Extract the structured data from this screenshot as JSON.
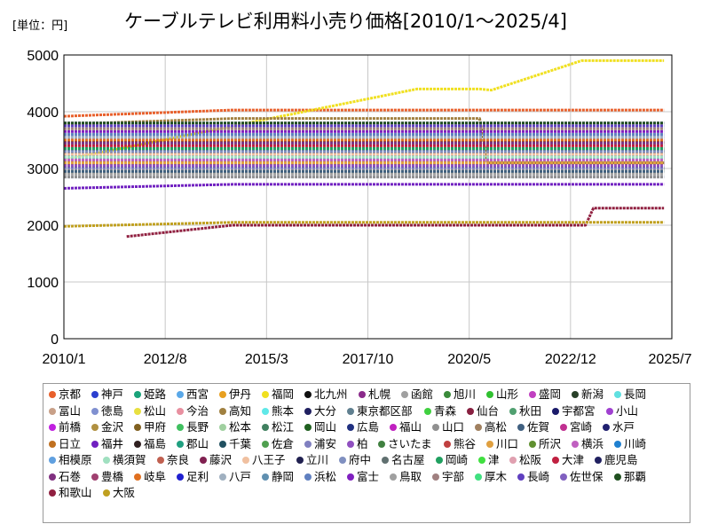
{
  "chart_data": {
    "type": "line",
    "title": "ケーブルテレビ利用料小売り価格[2010/1～2025/4]",
    "unit_label": "[単位：円]",
    "ylim": [
      0,
      5000
    ],
    "yticks": [
      "0",
      "1000",
      "2000",
      "3000",
      "4000",
      "5000"
    ],
    "xlim": [
      "2010/1",
      "2025/7"
    ],
    "xticks": [
      "2010/1",
      "2012/8",
      "2015/3",
      "2017/10",
      "2020/5",
      "2022/12",
      "2025/7"
    ],
    "grid": true,
    "legend_placement": "bottom",
    "series": [
      {
        "name": "京都",
        "color": "#e8602c",
        "values": [
          [
            2010.0,
            3920
          ],
          [
            2014.3,
            4030
          ],
          [
            2025.3,
            4030
          ]
        ]
      },
      {
        "name": "神戸",
        "color": "#2b3fcf",
        "values": [
          [
            2010.0,
            3010
          ],
          [
            2025.3,
            3010
          ]
        ]
      },
      {
        "name": "姫路",
        "color": "#1aa37a",
        "values": [
          [
            2010.0,
            3300
          ],
          [
            2025.3,
            3300
          ]
        ]
      },
      {
        "name": "西宮",
        "color": "#5aa8e8",
        "values": [
          [
            2010.0,
            3010
          ],
          [
            2025.3,
            3010
          ]
        ]
      },
      {
        "name": "伊丹",
        "color": "#e8a020",
        "values": [
          [
            2010.0,
            3080
          ],
          [
            2025.3,
            3080
          ]
        ]
      },
      {
        "name": "福岡",
        "color": "#f0e020",
        "values": [
          [
            2010.0,
            3150
          ],
          [
            2019.0,
            4400
          ],
          [
            2020.6,
            4400
          ],
          [
            2020.9,
            4380
          ],
          [
            2023.2,
            4900
          ],
          [
            2025.3,
            4900
          ]
        ]
      },
      {
        "name": "北九州",
        "color": "#101010",
        "values": [
          [
            2010.0,
            3460
          ],
          [
            2025.3,
            3460
          ]
        ]
      },
      {
        "name": "札幌",
        "color": "#8a2a8a",
        "values": [
          [
            2010.0,
            3080
          ],
          [
            2025.3,
            3080
          ]
        ]
      },
      {
        "name": "函館",
        "color": "#a0a0a0",
        "values": [
          [
            2010.0,
            2900
          ],
          [
            2025.3,
            2900
          ]
        ]
      },
      {
        "name": "旭川",
        "color": "#3a8a3a",
        "values": [
          [
            2010.0,
            3250
          ],
          [
            2025.3,
            3250
          ]
        ]
      },
      {
        "name": "山形",
        "color": "#30c030",
        "values": [
          [
            2010.0,
            3350
          ],
          [
            2025.3,
            3350
          ]
        ]
      },
      {
        "name": "盛岡",
        "color": "#c040c0",
        "values": [
          [
            2010.0,
            3000
          ],
          [
            2025.3,
            3000
          ]
        ]
      },
      {
        "name": "新潟",
        "color": "#284028",
        "values": [
          [
            2010.0,
            2950
          ],
          [
            2025.3,
            2950
          ]
        ]
      },
      {
        "name": "長岡",
        "color": "#60e0e0",
        "values": [
          [
            2010.0,
            3200
          ],
          [
            2025.3,
            3200
          ]
        ]
      },
      {
        "name": "冨山",
        "color": "#c8a088",
        "values": [
          [
            2010.0,
            3100
          ],
          [
            2025.3,
            3100
          ]
        ]
      },
      {
        "name": "徳島",
        "color": "#8090d0",
        "values": [
          [
            2010.0,
            2850
          ],
          [
            2025.3,
            2850
          ]
        ]
      },
      {
        "name": "松山",
        "color": "#e8e040",
        "values": [
          [
            2010.0,
            2980
          ],
          [
            2025.3,
            2980
          ]
        ]
      },
      {
        "name": "今治",
        "color": "#e890a0",
        "values": [
          [
            2010.0,
            3000
          ],
          [
            2025.3,
            3000
          ]
        ]
      },
      {
        "name": "高知",
        "color": "#a08040",
        "values": [
          [
            2010.0,
            3780
          ],
          [
            2014.3,
            3880
          ],
          [
            2020.6,
            3880
          ],
          [
            2020.8,
            3100
          ],
          [
            2025.3,
            3100
          ]
        ]
      },
      {
        "name": "熊本",
        "color": "#60e8e8",
        "values": [
          [
            2010.0,
            3000
          ],
          [
            2025.3,
            3000
          ]
        ]
      },
      {
        "name": "大分",
        "color": "#202060",
        "values": [
          [
            2010.0,
            3030
          ],
          [
            2025.3,
            3030
          ]
        ]
      },
      {
        "name": "東京都区部",
        "color": "#608090",
        "values": [
          [
            2010.0,
            3200
          ],
          [
            2025.3,
            3200
          ]
        ]
      },
      {
        "name": "青森",
        "color": "#40d040",
        "values": [
          [
            2010.0,
            3300
          ],
          [
            2025.3,
            3300
          ]
        ]
      },
      {
        "name": "仙台",
        "color": "#882040",
        "values": [
          [
            2010.0,
            3330
          ],
          [
            2025.3,
            3330
          ]
        ]
      },
      {
        "name": "秋田",
        "color": "#50a070",
        "values": [
          [
            2010.0,
            3200
          ],
          [
            2025.3,
            3200
          ]
        ]
      },
      {
        "name": "宇都宮",
        "color": "#1a1a6a",
        "values": [
          [
            2010.0,
            3300
          ],
          [
            2025.3,
            3300
          ]
        ]
      },
      {
        "name": "小山",
        "color": "#a040d0",
        "values": [
          [
            2010.0,
            3100
          ],
          [
            2025.3,
            3100
          ]
        ]
      },
      {
        "name": "前橋",
        "color": "#c020e0",
        "values": [
          [
            2010.0,
            3100
          ],
          [
            2025.3,
            3100
          ]
        ]
      },
      {
        "name": "金沢",
        "color": "#b09040",
        "values": [
          [
            2010.0,
            3150
          ],
          [
            2025.3,
            3150
          ]
        ]
      },
      {
        "name": "甲府",
        "color": "#806020",
        "values": [
          [
            2010.0,
            3200
          ],
          [
            2025.3,
            3200
          ]
        ]
      },
      {
        "name": "長野",
        "color": "#40c060",
        "values": [
          [
            2010.0,
            3250
          ],
          [
            2025.3,
            3250
          ]
        ]
      },
      {
        "name": "松本",
        "color": "#a0d0a0",
        "values": [
          [
            2010.0,
            3300
          ],
          [
            2025.3,
            3300
          ]
        ]
      },
      {
        "name": "松江",
        "color": "#408060",
        "values": [
          [
            2010.0,
            3150
          ],
          [
            2025.3,
            3150
          ]
        ]
      },
      {
        "name": "岡山",
        "color": "#206020",
        "values": [
          [
            2010.0,
            3350
          ],
          [
            2025.3,
            3350
          ]
        ]
      },
      {
        "name": "広島",
        "color": "#203080",
        "values": [
          [
            2010.0,
            3300
          ],
          [
            2025.3,
            3300
          ]
        ]
      },
      {
        "name": "福山",
        "color": "#c020c0",
        "values": [
          [
            2010.0,
            3200
          ],
          [
            2025.3,
            3200
          ]
        ]
      },
      {
        "name": "山口",
        "color": "#909090",
        "values": [
          [
            2010.0,
            2850
          ],
          [
            2025.3,
            2850
          ]
        ]
      },
      {
        "name": "高松",
        "color": "#a08060",
        "values": [
          [
            2010.0,
            3100
          ],
          [
            2025.3,
            3100
          ]
        ]
      },
      {
        "name": "佐賀",
        "color": "#406080",
        "values": [
          [
            2010.0,
            2950
          ],
          [
            2025.3,
            2950
          ]
        ]
      },
      {
        "name": "宮崎",
        "color": "#c03090",
        "values": [
          [
            2010.0,
            3000
          ],
          [
            2025.3,
            3000
          ]
        ]
      },
      {
        "name": "水戸",
        "color": "#202070",
        "values": [
          [
            2010.0,
            3100
          ],
          [
            2025.3,
            3100
          ]
        ]
      },
      {
        "name": "日立",
        "color": "#c07020",
        "values": [
          [
            2010.0,
            3200
          ],
          [
            2025.3,
            3200
          ]
        ]
      },
      {
        "name": "福井",
        "color": "#7020c0",
        "values": [
          [
            2010.0,
            2650
          ],
          [
            2014.3,
            2720
          ],
          [
            2025.3,
            2720
          ]
        ]
      },
      {
        "name": "福島",
        "color": "#302020",
        "values": [
          [
            2010.0,
            3300
          ],
          [
            2025.3,
            3300
          ]
        ]
      },
      {
        "name": "郡山",
        "color": "#20a080",
        "values": [
          [
            2010.0,
            3200
          ],
          [
            2025.3,
            3200
          ]
        ]
      },
      {
        "name": "千葉",
        "color": "#205060",
        "values": [
          [
            2010.0,
            3000
          ],
          [
            2025.3,
            3000
          ]
        ]
      },
      {
        "name": "佐倉",
        "color": "#50a050",
        "values": [
          [
            2010.0,
            3000
          ],
          [
            2025.3,
            3000
          ]
        ]
      },
      {
        "name": "浦安",
        "color": "#8080c0",
        "values": [
          [
            2010.0,
            3000
          ],
          [
            2025.3,
            3000
          ]
        ]
      },
      {
        "name": "柏",
        "color": "#9050c0",
        "values": [
          [
            2010.0,
            3050
          ],
          [
            2025.3,
            3050
          ]
        ]
      },
      {
        "name": "さいたま",
        "color": "#408040",
        "values": [
          [
            2010.0,
            3100
          ],
          [
            2025.3,
            3100
          ]
        ]
      },
      {
        "name": "熊谷",
        "color": "#c04040",
        "values": [
          [
            2010.0,
            3100
          ],
          [
            2025.3,
            3100
          ]
        ]
      },
      {
        "name": "川口",
        "color": "#e0a040",
        "values": [
          [
            2010.0,
            3100
          ],
          [
            2025.3,
            3100
          ]
        ]
      },
      {
        "name": "所沢",
        "color": "#609030",
        "values": [
          [
            2010.0,
            3150
          ],
          [
            2025.3,
            3150
          ]
        ]
      },
      {
        "name": "横浜",
        "color": "#c060c0",
        "values": [
          [
            2010.0,
            3150
          ],
          [
            2025.3,
            3150
          ]
        ]
      },
      {
        "name": "川崎",
        "color": "#2080d0",
        "values": [
          [
            2010.0,
            3200
          ],
          [
            2025.3,
            3200
          ]
        ]
      },
      {
        "name": "相模原",
        "color": "#60a0e0",
        "values": [
          [
            2010.0,
            3200
          ],
          [
            2025.3,
            3200
          ]
        ]
      },
      {
        "name": "横須賀",
        "color": "#a0e0c0",
        "values": [
          [
            2010.0,
            3200
          ],
          [
            2025.3,
            3200
          ]
        ]
      },
      {
        "name": "奈良",
        "color": "#c06050",
        "values": [
          [
            2010.0,
            3250
          ],
          [
            2025.3,
            3250
          ]
        ]
      },
      {
        "name": "藤沢",
        "color": "#802050",
        "values": [
          [
            2010.0,
            3250
          ],
          [
            2025.3,
            3250
          ]
        ]
      },
      {
        "name": "八王子",
        "color": "#f0c0a0",
        "values": [
          [
            2010.0,
            3250
          ],
          [
            2025.3,
            3250
          ]
        ]
      },
      {
        "name": "立川",
        "color": "#202050",
        "values": [
          [
            2010.0,
            3300
          ],
          [
            2025.3,
            3300
          ]
        ]
      },
      {
        "name": "府中",
        "color": "#8090c0",
        "values": [
          [
            2010.0,
            3300
          ],
          [
            2025.3,
            3300
          ]
        ]
      },
      {
        "name": "名古屋",
        "color": "#607070",
        "values": [
          [
            2010.0,
            3350
          ],
          [
            2025.3,
            3350
          ]
        ]
      },
      {
        "name": "岡崎",
        "color": "#20a060",
        "values": [
          [
            2010.0,
            3350
          ],
          [
            2025.3,
            3350
          ]
        ]
      },
      {
        "name": "津",
        "color": "#40e040",
        "values": [
          [
            2010.0,
            3400
          ],
          [
            2025.3,
            3400
          ]
        ]
      },
      {
        "name": "松阪",
        "color": "#e0a0b0",
        "values": [
          [
            2010.0,
            3400
          ],
          [
            2025.3,
            3400
          ]
        ]
      },
      {
        "name": "大津",
        "color": "#c02040",
        "values": [
          [
            2010.0,
            3400
          ],
          [
            2025.3,
            3400
          ]
        ]
      },
      {
        "name": "鹿児島",
        "color": "#202060",
        "values": [
          [
            2010.0,
            3450
          ],
          [
            2025.3,
            3450
          ]
        ]
      },
      {
        "name": "石巻",
        "color": "#803080",
        "values": [
          [
            2010.0,
            3450
          ],
          [
            2025.3,
            3450
          ]
        ]
      },
      {
        "name": "豊橋",
        "color": "#a04070",
        "values": [
          [
            2010.0,
            3500
          ],
          [
            2025.3,
            3500
          ]
        ]
      },
      {
        "name": "岐阜",
        "color": "#e07020",
        "values": [
          [
            2010.0,
            3500
          ],
          [
            2025.3,
            3500
          ]
        ]
      },
      {
        "name": "足利",
        "color": "#2020d0",
        "values": [
          [
            2010.0,
            3550
          ],
          [
            2025.3,
            3550
          ]
        ]
      },
      {
        "name": "八戸",
        "color": "#a0b0c0",
        "values": [
          [
            2010.0,
            3550
          ],
          [
            2025.3,
            3550
          ]
        ]
      },
      {
        "name": "静岡",
        "color": "#6090b0",
        "values": [
          [
            2010.0,
            3600
          ],
          [
            2025.3,
            3600
          ]
        ]
      },
      {
        "name": "浜松",
        "color": "#6080c0",
        "values": [
          [
            2010.0,
            3600
          ],
          [
            2025.3,
            3600
          ]
        ]
      },
      {
        "name": "富士",
        "color": "#8020c0",
        "values": [
          [
            2010.0,
            3650
          ],
          [
            2025.3,
            3650
          ]
        ]
      },
      {
        "name": "鳥取",
        "color": "#a0a0a0",
        "values": [
          [
            2010.0,
            3700
          ],
          [
            2025.3,
            3700
          ]
        ]
      },
      {
        "name": "宇部",
        "color": "#a08080",
        "values": [
          [
            2010.0,
            3700
          ],
          [
            2025.3,
            3700
          ]
        ]
      },
      {
        "name": "厚木",
        "color": "#40e080",
        "values": [
          [
            2010.0,
            3750
          ],
          [
            2025.3,
            3750
          ]
        ]
      },
      {
        "name": "長崎",
        "color": "#6040c0",
        "values": [
          [
            2010.0,
            3750
          ],
          [
            2025.3,
            3750
          ]
        ]
      },
      {
        "name": "佐世保",
        "color": "#8060c0",
        "values": [
          [
            2010.0,
            3800
          ],
          [
            2025.3,
            3800
          ]
        ]
      },
      {
        "name": "那覇",
        "color": "#205020",
        "values": [
          [
            2010.0,
            3800
          ],
          [
            2025.3,
            3800
          ]
        ]
      },
      {
        "name": "和歌山",
        "color": "#902040",
        "values": [
          [
            2011.6,
            1800
          ],
          [
            2014.3,
            2000
          ],
          [
            2023.3,
            2000
          ],
          [
            2023.5,
            2300
          ],
          [
            2025.3,
            2300
          ]
        ]
      },
      {
        "name": "大阪",
        "color": "#c0a020",
        "values": [
          [
            2010.0,
            1980
          ],
          [
            2014.3,
            2050
          ],
          [
            2025.3,
            2050
          ]
        ]
      }
    ]
  }
}
